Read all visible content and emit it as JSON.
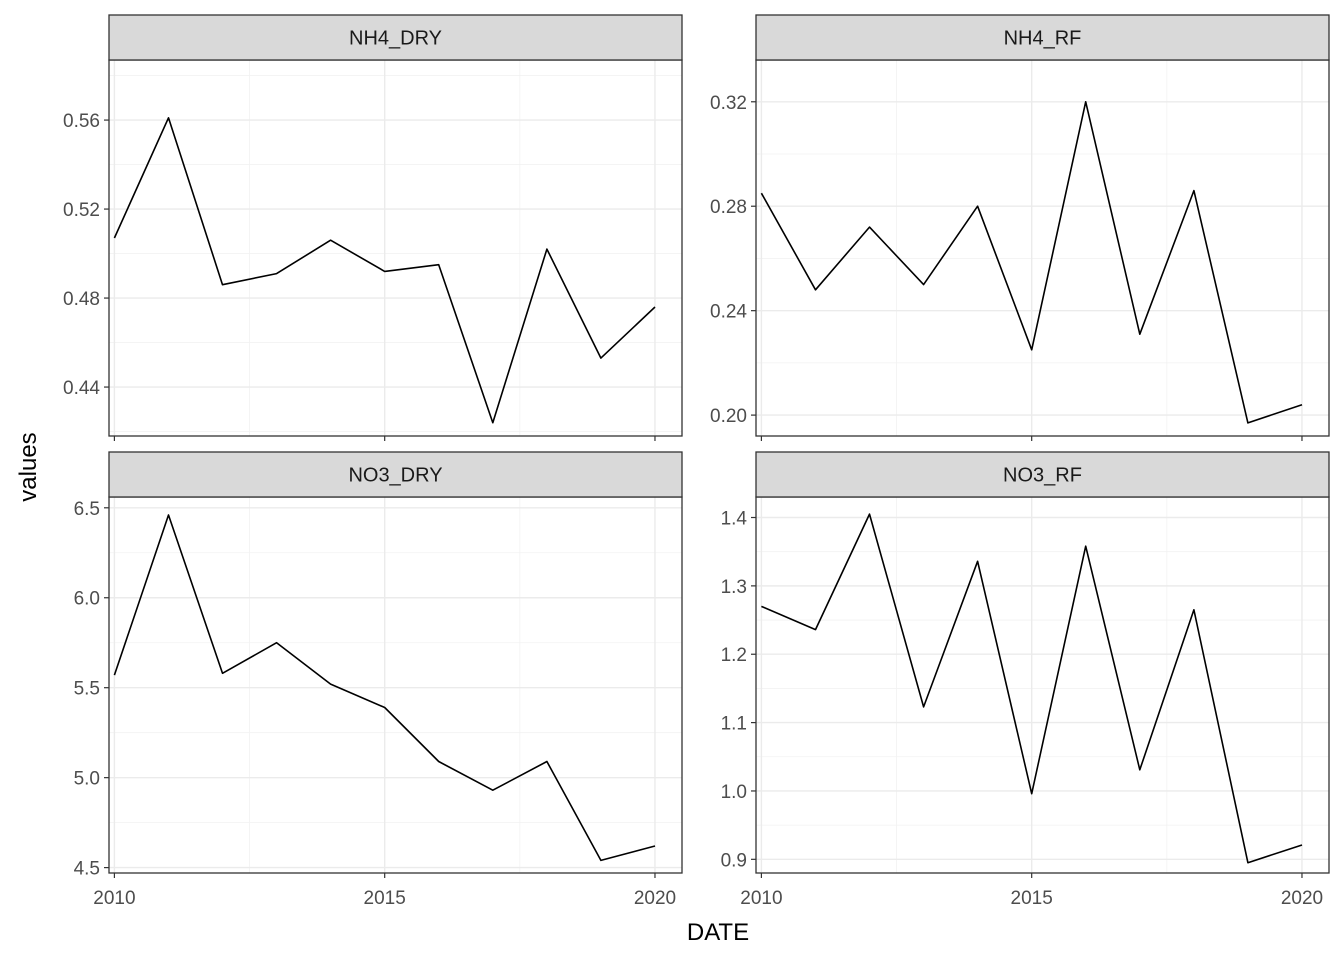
{
  "chart_data": {
    "type": "line",
    "layout": "facet_wrap 2x2, free y scales",
    "xlabel": "DATE",
    "ylabel": "values",
    "xlim": [
      2009.9,
      2020.5
    ],
    "x_ticks": [
      2010,
      2015,
      2020
    ],
    "x_tick_labels": [
      "2010",
      "2015",
      "2020"
    ],
    "grid": true,
    "line_color": "#000000",
    "strip_color": "#d9d9d9",
    "facets": [
      {
        "title": "NH4_DRY",
        "x": [
          2010,
          2011,
          2012,
          2013,
          2014,
          2015,
          2016,
          2017,
          2018,
          2019,
          2020
        ],
        "values": [
          0.507,
          0.561,
          0.486,
          0.491,
          0.506,
          0.492,
          0.495,
          0.424,
          0.502,
          0.453,
          0.476
        ],
        "ylim": [
          0.418,
          0.587
        ],
        "y_ticks": [
          0.44,
          0.48,
          0.52,
          0.56
        ],
        "y_tick_labels": [
          "0.44",
          "0.48",
          "0.52",
          "0.56"
        ]
      },
      {
        "title": "NH4_RF",
        "x": [
          2010,
          2011,
          2012,
          2013,
          2014,
          2015,
          2016,
          2017,
          2018,
          2019,
          2020
        ],
        "values": [
          0.285,
          0.248,
          0.272,
          0.25,
          0.28,
          0.225,
          0.32,
          0.231,
          0.286,
          0.197,
          0.204
        ],
        "ylim": [
          0.192,
          0.336
        ],
        "y_ticks": [
          0.2,
          0.24,
          0.28,
          0.32
        ],
        "y_tick_labels": [
          "0.20",
          "0.24",
          "0.28",
          "0.32"
        ]
      },
      {
        "title": "NO3_DRY",
        "x": [
          2010,
          2011,
          2012,
          2013,
          2014,
          2015,
          2016,
          2017,
          2018,
          2019,
          2020
        ],
        "values": [
          5.57,
          6.46,
          5.58,
          5.75,
          5.52,
          5.39,
          5.09,
          4.93,
          5.09,
          4.54,
          4.62
        ],
        "ylim": [
          4.47,
          6.56
        ],
        "y_ticks": [
          4.5,
          5.0,
          5.5,
          6.0,
          6.5
        ],
        "y_tick_labels": [
          "4.5",
          "5.0",
          "5.5",
          "6.0",
          "6.5"
        ]
      },
      {
        "title": "NO3_RF",
        "x": [
          2010,
          2011,
          2012,
          2013,
          2014,
          2015,
          2016,
          2017,
          2018,
          2019,
          2020
        ],
        "values": [
          1.27,
          1.236,
          1.405,
          1.123,
          1.336,
          0.996,
          1.358,
          1.031,
          1.265,
          0.895,
          0.921
        ],
        "ylim": [
          0.88,
          1.43
        ],
        "y_ticks": [
          0.9,
          1.0,
          1.1,
          1.2,
          1.3,
          1.4
        ],
        "y_tick_labels": [
          "0.9",
          "1.0",
          "1.1",
          "1.2",
          "1.3",
          "1.4"
        ]
      }
    ]
  }
}
